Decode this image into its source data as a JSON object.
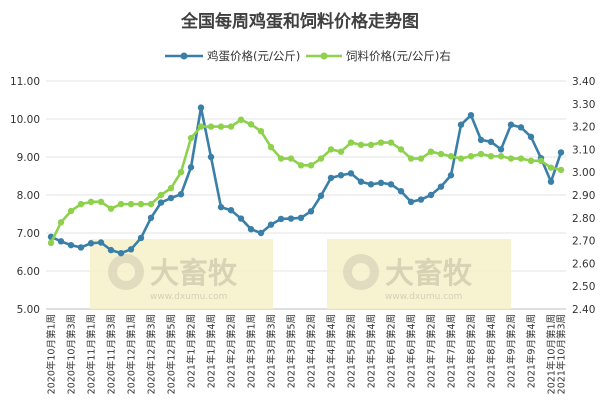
{
  "chart_data": {
    "type": "line",
    "title": "全国每周鸡蛋和饲料价格走势图",
    "watermark": {
      "logo_text": "大畜牧",
      "url_text": "www.dxumu.com"
    },
    "x": [
      "2020年10月第1周",
      "2020年10月第2周",
      "2020年10月第3周",
      "2020年10月第4周",
      "2020年11月第1周",
      "2020年11月第2周",
      "2020年11月第3周",
      "2020年11月第4周",
      "2020年12月第1周",
      "2020年12月第2周",
      "2020年12月第3周",
      "2020年12月第4周",
      "2020年12月第5周",
      "2021年1月第1周",
      "2021年1月第2周",
      "2021年1月第3周",
      "2021年1月第4周",
      "2021年2月第1周",
      "2021年2月第2周",
      "2021年2月第3周",
      "2021年3月第1周",
      "2021年3月第2周",
      "2021年3月第3周",
      "2021年3月第4周",
      "2021年3月第5周",
      "2021年4月第1周",
      "2021年4月第2周",
      "2021年4月第3周",
      "2021年4月第4周",
      "2021年5月第1周",
      "2021年5月第2周",
      "2021年5月第3周",
      "2021年5月第4周",
      "2021年6月第1周",
      "2021年6月第2周",
      "2021年6月第3周",
      "2021年6月第4周",
      "2021年7月第1周",
      "2021年7月第2周",
      "2021年7月第3周",
      "2021年7月第4周",
      "2021年8月第1周",
      "2021年8月第2周",
      "2021年8月第3周",
      "2021年8月第4周",
      "2021年9月第1周",
      "2021年9月第2周",
      "2021年9月第3周",
      "2021年9月第4周",
      "2021年9月第5周",
      "2021年10月第1周",
      "2021年10月第3周"
    ],
    "x_tick_labels": [
      "2020年10月第1周",
      "2020年10月第3周",
      "2020年11月第1周",
      "2020年11月第3周",
      "2020年12月第1周",
      "2020年12月第3周",
      "2020年12月第5周",
      "2021年1月第2周",
      "2021年1月第4周",
      "2021年2月第2周",
      "2021年3月第1周",
      "2021年3月第3周",
      "2021年3月第5周",
      "2021年4月第2周",
      "2021年4月第4周",
      "2021年5月第2周",
      "2021年5月第4周",
      "2021年6月第2周",
      "2021年6月第4周",
      "2021年7月第2周",
      "2021年7月第4周",
      "2021年8月第2周",
      "2021年8月第4周",
      "2021年9月第2周",
      "2021年9月第4周",
      "2021年10月第1周",
      "2021年10月第3周"
    ],
    "series": [
      {
        "name": "鸡蛋价格(元/公斤)",
        "axis": "left",
        "color": "#3a7fa8",
        "values": [
          6.9,
          6.78,
          6.68,
          6.62,
          6.73,
          6.75,
          6.55,
          6.47,
          6.57,
          6.87,
          7.4,
          7.8,
          7.92,
          8.02,
          8.73,
          10.3,
          9.0,
          7.68,
          7.6,
          7.38,
          7.1,
          7.0,
          7.22,
          7.37,
          7.38,
          7.4,
          7.57,
          7.98,
          8.45,
          8.52,
          8.57,
          8.35,
          8.28,
          8.32,
          8.28,
          8.1,
          7.82,
          7.88,
          8.0,
          8.22,
          8.52,
          9.85,
          10.1,
          9.45,
          9.4,
          9.2,
          9.85,
          9.78,
          9.53,
          8.97,
          8.35,
          9.12
        ]
      },
      {
        "name": "饲料价格(元/公斤)右",
        "axis": "right",
        "color": "#8ed14d",
        "values": [
          2.69,
          2.78,
          2.83,
          2.86,
          2.87,
          2.87,
          2.84,
          2.86,
          2.86,
          2.86,
          2.86,
          2.9,
          2.93,
          3.0,
          3.15,
          3.2,
          3.2,
          3.2,
          3.2,
          3.23,
          3.21,
          3.18,
          3.11,
          3.06,
          3.06,
          3.03,
          3.03,
          3.06,
          3.1,
          3.09,
          3.13,
          3.12,
          3.12,
          3.13,
          3.13,
          3.1,
          3.06,
          3.06,
          3.09,
          3.08,
          3.07,
          3.06,
          3.07,
          3.08,
          3.07,
          3.07,
          3.06,
          3.06,
          3.05,
          3.05,
          3.02,
          3.01
        ]
      }
    ],
    "y_left": {
      "lim": [
        5.0,
        11.0
      ],
      "ticks": [
        "5.00",
        "6.00",
        "7.00",
        "8.00",
        "9.00",
        "10.00",
        "11.00"
      ]
    },
    "y_right": {
      "lim": [
        2.4,
        3.4
      ],
      "ticks": [
        "2.40",
        "2.50",
        "2.60",
        "2.70",
        "2.80",
        "2.90",
        "3.00",
        "3.10",
        "3.20",
        "3.30",
        "3.40"
      ]
    },
    "grid": true,
    "legend_position": "top"
  }
}
